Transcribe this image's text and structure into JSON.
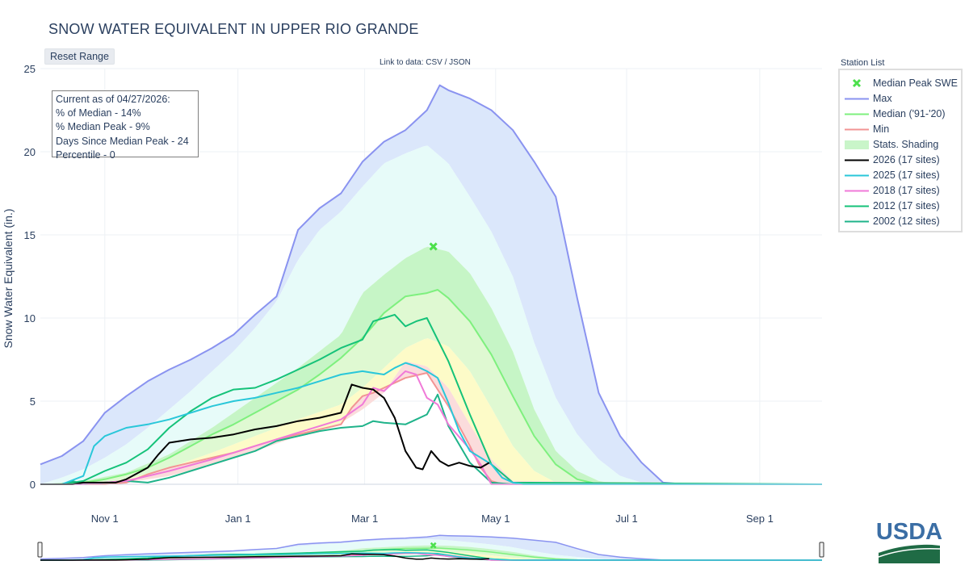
{
  "title": "SNOW WATER EQUIVALENT IN UPPER RIO GRANDE",
  "reset_button": "Reset Range",
  "data_link": "Link to data: CSV / JSON",
  "legend_title": "Station List",
  "info_box": {
    "line1": "Current as of 04/27/2026:",
    "line2": "% of Median - 14%",
    "line3": "% Median Peak - 9%",
    "line4": "Days Since Median Peak - 24",
    "line5": "Percentile - 0"
  },
  "logo_text": "USDA",
  "chart_data": {
    "type": "line",
    "title": "SNOW WATER EQUIVALENT IN UPPER RIO GRANDE",
    "ylabel": "Snow Water Equivalent (in.)",
    "xlabel": "",
    "x_units": "days since Oct 1",
    "xlim": [
      0,
      364
    ],
    "ylim": [
      0,
      25
    ],
    "grid": true,
    "legend_placement": "top-right outside",
    "x_ticks": [
      {
        "x": 30,
        "label": "Nov  1"
      },
      {
        "x": 92,
        "label": "Jan  1"
      },
      {
        "x": 151,
        "label": "Mar  1"
      },
      {
        "x": 212,
        "label": "May  1"
      },
      {
        "x": 273,
        "label": "Jul  1"
      },
      {
        "x": 335,
        "label": "Sep  1"
      }
    ],
    "y_ticks": [
      0,
      5,
      10,
      15,
      20,
      25
    ],
    "median_peak": {
      "x": 183,
      "y": 14.3
    },
    "bands": [
      {
        "name": "Max",
        "color": "#dbe7fb",
        "upper_ref": "max",
        "lower_ref": "p90"
      },
      {
        "name": "p90",
        "color": "#e7fbf9",
        "upper_ref": "p90",
        "lower_ref": "p70"
      },
      {
        "name": "p70",
        "color": "#c6f5c6",
        "upper_ref": "p70",
        "lower_ref": "median"
      },
      {
        "name": "p50",
        "color": "#dff9d2",
        "upper_ref": "median",
        "lower_ref": "p30"
      },
      {
        "name": "p30",
        "color": "#fdfbc8",
        "upper_ref": "p30",
        "lower_ref": "p10"
      },
      {
        "name": "p10",
        "color": "#fbdcdc",
        "upper_ref": "p10",
        "lower_ref": "min"
      }
    ],
    "stats": {
      "max": {
        "x": [
          0,
          10,
          20,
          30,
          40,
          50,
          60,
          70,
          80,
          90,
          100,
          110,
          120,
          130,
          140,
          150,
          160,
          170,
          180,
          186,
          190,
          200,
          210,
          220,
          230,
          240,
          250,
          260,
          270,
          280,
          290,
          300,
          310,
          320,
          330,
          340,
          350,
          364
        ],
        "y": [
          1.2,
          1.7,
          2.6,
          4.3,
          5.3,
          6.2,
          6.9,
          7.5,
          8.2,
          9.0,
          10.2,
          11.3,
          15.3,
          16.6,
          17.5,
          19.4,
          20.6,
          21.3,
          22.5,
          24.0,
          23.7,
          23.2,
          22.5,
          21.3,
          19.4,
          17.3,
          11.2,
          5.5,
          2.9,
          1.3,
          0.1,
          0.0,
          0.0,
          0.0,
          0.0,
          0.0,
          0.0,
          0.0
        ]
      },
      "p90": {
        "x": [
          0,
          10,
          20,
          30,
          40,
          50,
          60,
          70,
          80,
          90,
          100,
          110,
          120,
          130,
          140,
          150,
          160,
          170,
          180,
          190,
          200,
          210,
          220,
          230,
          240,
          250,
          260,
          270,
          280,
          290,
          364
        ],
        "y": [
          0.0,
          0.4,
          0.9,
          1.6,
          2.4,
          3.4,
          4.5,
          5.6,
          6.8,
          8.0,
          9.4,
          11.0,
          13.5,
          15.3,
          16.4,
          17.9,
          19.3,
          19.9,
          20.4,
          19.3,
          17.3,
          15.2,
          12.5,
          8.5,
          5.2,
          3.0,
          1.5,
          0.5,
          0.1,
          0.0,
          0.0
        ]
      },
      "p70": {
        "x": [
          0,
          20,
          40,
          60,
          80,
          100,
          120,
          140,
          150,
          160,
          170,
          180,
          190,
          200,
          210,
          220,
          230,
          240,
          250,
          260,
          270,
          364
        ],
        "y": [
          0.0,
          0.2,
          0.7,
          1.8,
          3.4,
          5.2,
          7.0,
          9.0,
          11.5,
          12.6,
          13.6,
          14.3,
          14.0,
          12.7,
          10.6,
          8.0,
          4.5,
          2.0,
          0.8,
          0.2,
          0.0,
          0.0
        ]
      },
      "median": {
        "x": [
          0,
          10,
          20,
          30,
          40,
          50,
          60,
          70,
          80,
          90,
          100,
          110,
          120,
          130,
          140,
          150,
          160,
          170,
          180,
          185,
          190,
          200,
          210,
          220,
          230,
          240,
          250,
          260,
          270,
          364
        ],
        "y": [
          0.0,
          0.0,
          0.1,
          0.3,
          0.6,
          1.0,
          1.6,
          2.3,
          3.0,
          3.6,
          4.3,
          5.0,
          5.7,
          6.6,
          7.6,
          8.8,
          10.3,
          11.3,
          11.5,
          11.7,
          11.2,
          9.8,
          7.8,
          5.3,
          2.9,
          1.2,
          0.3,
          0.0,
          0.0,
          0.0
        ]
      },
      "p30": {
        "x": [
          0,
          20,
          40,
          60,
          80,
          100,
          120,
          140,
          150,
          160,
          170,
          180,
          190,
          200,
          210,
          220,
          230,
          240,
          364
        ],
        "y": [
          0.0,
          0.0,
          0.3,
          1.0,
          1.9,
          2.9,
          3.9,
          4.8,
          5.8,
          7.0,
          8.2,
          8.8,
          8.3,
          6.8,
          4.6,
          2.3,
          0.8,
          0.1,
          0.0
        ]
      },
      "p10": {
        "x": [
          0,
          20,
          40,
          60,
          80,
          100,
          120,
          140,
          150,
          160,
          170,
          180,
          190,
          200,
          210,
          220,
          364
        ],
        "y": [
          0.0,
          0.0,
          0.1,
          0.5,
          1.2,
          2.0,
          2.9,
          3.7,
          4.5,
          5.5,
          7.4,
          7.1,
          5.8,
          3.6,
          1.5,
          0.2,
          0.0
        ]
      },
      "min": {
        "x": [
          0,
          20,
          30,
          40,
          50,
          60,
          70,
          80,
          90,
          100,
          110,
          120,
          130,
          140,
          145,
          150,
          155,
          160,
          170,
          180,
          190,
          200,
          205,
          210,
          215,
          364
        ],
        "y": [
          0.0,
          0.0,
          0.0,
          0.1,
          0.6,
          1.0,
          1.3,
          1.6,
          1.9,
          2.3,
          2.7,
          3.0,
          3.3,
          3.6,
          4.6,
          5.3,
          5.5,
          5.8,
          6.4,
          6.7,
          4.7,
          2.3,
          1.0,
          0.2,
          0.0,
          0.0
        ]
      }
    },
    "series": [
      {
        "name": "Max",
        "ref": "max",
        "color": "#8a93f0",
        "width": 2
      },
      {
        "name": "Median ('91-'20)",
        "ref": "median",
        "color": "#7ef07e",
        "width": 2
      },
      {
        "name": "Min",
        "ref": "min",
        "color": "#f29494",
        "width": 2
      },
      {
        "name": "2002 (12 sites)",
        "color": "#1fb38a",
        "width": 2,
        "x": [
          0,
          10,
          15,
          20,
          30,
          40,
          50,
          60,
          70,
          80,
          90,
          100,
          110,
          120,
          130,
          140,
          150,
          155,
          160,
          170,
          175,
          180,
          185,
          190,
          200,
          210,
          220,
          364
        ],
        "y": [
          0.0,
          0.0,
          0.2,
          0.0,
          0.1,
          0.2,
          0.1,
          0.4,
          0.8,
          1.2,
          1.6,
          2.0,
          2.6,
          2.9,
          3.2,
          3.4,
          3.5,
          3.8,
          3.7,
          3.6,
          3.9,
          4.2,
          5.4,
          3.5,
          1.3,
          0.1,
          0.0,
          0.0
        ]
      },
      {
        "name": "2012 (17 sites)",
        "color": "#15c279",
        "width": 2,
        "x": [
          0,
          10,
          20,
          30,
          40,
          50,
          60,
          70,
          80,
          90,
          100,
          110,
          120,
          130,
          140,
          150,
          155,
          160,
          165,
          170,
          175,
          180,
          190,
          200,
          210,
          220,
          364
        ],
        "y": [
          0.0,
          0.0,
          0.2,
          0.8,
          1.3,
          2.1,
          3.4,
          4.4,
          5.2,
          5.7,
          5.8,
          6.3,
          6.9,
          7.5,
          8.2,
          8.7,
          9.8,
          10.0,
          10.2,
          9.5,
          9.8,
          10.0,
          7.4,
          4.2,
          1.2,
          0.1,
          0.0
        ]
      },
      {
        "name": "2018 (17 sites)",
        "color": "#f07ad8",
        "width": 2,
        "x": [
          0,
          20,
          40,
          60,
          80,
          100,
          120,
          140,
          150,
          155,
          160,
          165,
          170,
          175,
          180,
          185,
          190,
          200,
          205,
          210,
          364
        ],
        "y": [
          0.0,
          0.0,
          0.2,
          0.8,
          1.5,
          2.3,
          3.1,
          3.9,
          4.8,
          5.8,
          5.6,
          6.2,
          6.8,
          6.6,
          5.2,
          4.8,
          3.6,
          2.1,
          1.2,
          0.0,
          0.0
        ]
      },
      {
        "name": "2025 (17 sites)",
        "color": "#29c7d9",
        "width": 2,
        "x": [
          0,
          10,
          20,
          25,
          30,
          40,
          50,
          60,
          70,
          80,
          90,
          100,
          110,
          120,
          130,
          140,
          150,
          155,
          160,
          165,
          170,
          175,
          180,
          185,
          190,
          195,
          200,
          205,
          210,
          215,
          220,
          225,
          364
        ],
        "y": [
          0.0,
          0.0,
          0.5,
          2.3,
          2.9,
          3.4,
          3.6,
          3.9,
          4.3,
          4.7,
          5.0,
          5.2,
          5.5,
          5.8,
          6.2,
          6.6,
          6.8,
          6.7,
          6.6,
          7.0,
          7.3,
          7.1,
          6.8,
          6.4,
          4.9,
          3.2,
          2.0,
          1.6,
          1.2,
          0.4,
          0.1,
          0.0,
          0.0
        ]
      },
      {
        "name": "2026 (17 sites)",
        "color": "#000000",
        "width": 2,
        "x": [
          0,
          15,
          20,
          30,
          35,
          40,
          50,
          55,
          60,
          70,
          80,
          90,
          100,
          110,
          120,
          130,
          140,
          145,
          150,
          155,
          160,
          165,
          170,
          175,
          178,
          182,
          186,
          190,
          195,
          200,
          205,
          209
        ],
        "y": [
          0.0,
          0.0,
          0.1,
          0.1,
          0.1,
          0.3,
          1.0,
          1.8,
          2.5,
          2.7,
          2.8,
          3.0,
          3.3,
          3.5,
          3.8,
          4.0,
          4.3,
          6.0,
          5.8,
          5.7,
          5.2,
          4.0,
          2.0,
          1.0,
          0.9,
          2.0,
          1.4,
          1.1,
          1.3,
          1.1,
          1.0,
          1.3
        ]
      }
    ],
    "legend": [
      {
        "name": "Median Peak SWE",
        "color": "#4ce04c",
        "kind": "marker"
      },
      {
        "name": "Max",
        "color": "#8a93f0",
        "kind": "line"
      },
      {
        "name": "Median ('91-'20)",
        "color": "#7ef07e",
        "kind": "line"
      },
      {
        "name": "Min",
        "color": "#f29494",
        "kind": "line"
      },
      {
        "name": "Stats. Shading",
        "color": "#c9f5c9",
        "kind": "fill"
      },
      {
        "name": "2026 (17 sites)",
        "color": "#000000",
        "kind": "line"
      },
      {
        "name": "2025 (17 sites)",
        "color": "#29c7d9",
        "kind": "line"
      },
      {
        "name": "2018 (17 sites)",
        "color": "#f07ad8",
        "kind": "line"
      },
      {
        "name": "2012 (17 sites)",
        "color": "#15c279",
        "kind": "line"
      },
      {
        "name": "2002 (12 sites)",
        "color": "#1fb38a",
        "kind": "line"
      }
    ]
  }
}
